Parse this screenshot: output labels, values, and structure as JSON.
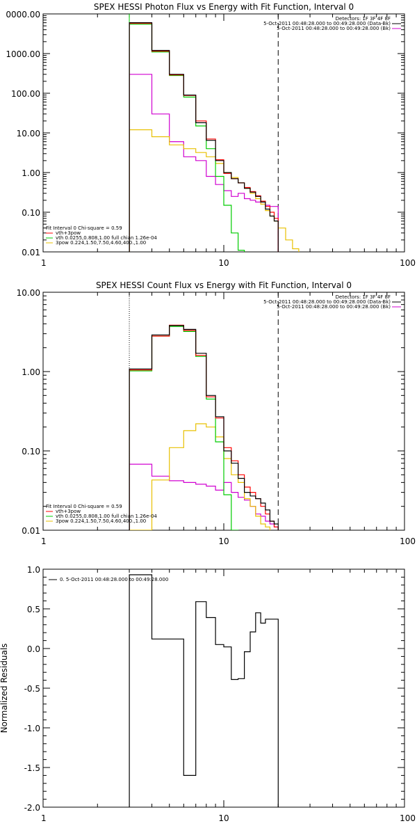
{
  "chart_data": [
    {
      "type": "line",
      "title": "SPEX HESSI Photon Flux vs Energy with Fit Function, Interval 0",
      "xlabel": "",
      "ylabel": "",
      "xscale": "log",
      "yscale": "log",
      "xlim": [
        1,
        100
      ],
      "ylim": [
        0.01,
        10000
      ],
      "xticks": [
        "1",
        "10",
        "100"
      ],
      "yticks": [
        "0000.00",
        "1000.00",
        "100.00",
        "10.00",
        "1.00",
        "0.10",
        "0.01"
      ],
      "ytick_values": [
        10000,
        1000,
        100,
        10,
        1,
        0.1,
        0.01
      ],
      "vlines": [
        {
          "x": 3,
          "style": "solid-green"
        },
        {
          "x": 20,
          "style": "dashed"
        }
      ],
      "header_text": [
        "Detectors: 1F 3F 4F 8F",
        "5-Oct-2011 00:48:28.000 to 00:49:28.000 (Data-Bk)",
        "5-Oct-2011 00:48:28.000 to 00:49:28.000 (Bk)"
      ],
      "fit_text": [
        "Fit Interval 0   Chi-square = 0.59",
        "vth+3pow",
        "vth 0.0255,0.808,1.00  full chian 1.26e-04",
        "3pow 0.224,1.50,7.50,4.60,400.,1.00"
      ],
      "edges": [
        3,
        4,
        5,
        6,
        7,
        8,
        9,
        10,
        11,
        12,
        13,
        14,
        15,
        16,
        17,
        18,
        19,
        20,
        22,
        24,
        26,
        28
      ],
      "series": [
        {
          "name": "Data-Bk",
          "color": "#000000",
          "values": [
            6000,
            1200,
            300,
            90,
            18,
            6.5,
            2.0,
            1.0,
            0.7,
            0.55,
            0.4,
            0.32,
            0.25,
            0.18,
            0.12,
            0.08,
            0.06,
            null,
            null,
            null,
            null
          ]
        },
        {
          "name": "vth+3pow",
          "color": "#ff0000",
          "values": [
            5800,
            1150,
            290,
            88,
            20,
            7.0,
            2.1,
            0.95,
            0.7,
            0.55,
            0.42,
            0.33,
            0.26,
            0.19,
            0.14,
            0.1,
            0.07,
            null,
            null,
            null,
            null
          ]
        },
        {
          "name": "vth",
          "color": "#00cc00",
          "values": [
            5500,
            1100,
            280,
            80,
            15,
            4.0,
            0.8,
            0.15,
            0.03,
            0.011,
            null,
            null,
            null,
            null,
            null,
            null,
            null,
            null,
            null,
            null,
            null
          ]
        },
        {
          "name": "3pow",
          "color": "#e8c000",
          "values": [
            12,
            8.0,
            5.0,
            4.0,
            3.2,
            2.5,
            1.7,
            1.0,
            0.75,
            0.55,
            0.4,
            0.3,
            0.22,
            0.16,
            0.11,
            0.08,
            0.06,
            0.04,
            0.02,
            0.012,
            null
          ]
        },
        {
          "name": "Bk",
          "color": "#d000d0",
          "values": [
            300,
            30,
            6.0,
            2.5,
            2.0,
            0.8,
            0.5,
            0.35,
            0.25,
            0.3,
            0.22,
            0.2,
            0.18,
            0.16,
            0.15,
            0.14,
            0.14,
            null,
            null,
            null,
            null
          ]
        }
      ]
    },
    {
      "type": "line",
      "title": "SPEX HESSI Count Flux vs Energy with Fit Function, Interval 0",
      "xlabel": "",
      "ylabel": "",
      "xscale": "log",
      "yscale": "log",
      "xlim": [
        1,
        100
      ],
      "ylim": [
        0.01,
        10
      ],
      "xticks": [
        "1",
        "10",
        "100"
      ],
      "yticks": [
        "10.00",
        "1.00",
        "0.10",
        "0.01"
      ],
      "ytick_values": [
        10,
        1,
        0.1,
        0.01
      ],
      "vlines": [
        {
          "x": 3,
          "style": "dotted"
        },
        {
          "x": 20,
          "style": "dashed"
        }
      ],
      "header_text": [
        "Detectors: 1F 3F 4F 8F",
        "5-Oct-2011 00:48:28.000 to 00:49:28.000 (Data-Bk)",
        "5-Oct-2011 00:48:28.000 to 00:49:28.000 (Bk)"
      ],
      "fit_text": [
        "Fit Interval 0   Chi-square = 0.59",
        "vth+3pow",
        "vth 0.0255,0.808,1.00  full chian 1.26e-04",
        "3pow 0.224,1.50,7.50,4.60,400.,1.00"
      ],
      "edges": [
        3,
        4,
        5,
        6,
        7,
        8,
        9,
        10,
        11,
        12,
        13,
        14,
        15,
        16,
        17,
        18,
        19,
        20
      ],
      "series": [
        {
          "name": "Data-Bk",
          "color": "#000000",
          "values": [
            1.08,
            2.9,
            3.8,
            3.4,
            1.7,
            0.5,
            0.27,
            0.1,
            0.07,
            0.045,
            0.03,
            0.027,
            0.025,
            0.022,
            0.018,
            0.013,
            0.012
          ]
        },
        {
          "name": "vth+3pow",
          "color": "#ff0000",
          "values": [
            1.05,
            2.8,
            3.85,
            3.3,
            1.6,
            0.48,
            0.26,
            0.11,
            0.075,
            0.05,
            0.035,
            0.03,
            0.025,
            0.02,
            0.016,
            0.013,
            0.011
          ]
        },
        {
          "name": "vth",
          "color": "#00cc00",
          "values": [
            1.02,
            2.8,
            3.7,
            3.2,
            1.55,
            0.45,
            0.13,
            0.028,
            0.01,
            null,
            null,
            null,
            null,
            null,
            null,
            null,
            null
          ]
        },
        {
          "name": "3pow",
          "color": "#e8c000",
          "values": [
            0.01,
            0.043,
            0.11,
            0.18,
            0.22,
            0.2,
            0.15,
            0.08,
            0.05,
            0.04,
            0.025,
            0.02,
            0.015,
            0.012,
            0.011,
            null,
            null
          ]
        },
        {
          "name": "Bk",
          "color": "#d000d0",
          "values": [
            0.068,
            0.048,
            0.042,
            0.04,
            0.038,
            0.036,
            0.032,
            0.04,
            0.03,
            0.026,
            0.024,
            0.02,
            0.016,
            0.015,
            0.013,
            0.012,
            0.011
          ]
        }
      ]
    },
    {
      "type": "line",
      "title": "",
      "xlabel": "",
      "ylabel": "Normalized Residuals",
      "xscale": "log",
      "yscale": "linear",
      "xlim": [
        1,
        100
      ],
      "ylim": [
        -2.0,
        1.0
      ],
      "xticks": [
        "1",
        "10",
        "100"
      ],
      "yticks": [
        "1.0",
        "0.5",
        "0.0",
        "-0.5",
        "-1.0",
        "-1.5",
        "-2.0"
      ],
      "ytick_values": [
        1.0,
        0.5,
        0.0,
        -0.5,
        -1.0,
        -1.5,
        -2.0
      ],
      "legend": "0.  5-Oct-2011 00:48:28.000 to 00:49:28.000",
      "edges": [
        3,
        4,
        5,
        6,
        7,
        8,
        9,
        10,
        11,
        12,
        13,
        14,
        15,
        16,
        17,
        18,
        19,
        20
      ],
      "series": [
        {
          "name": "0.  5-Oct-2011 00:48:28.000 to 00:49:28.000",
          "color": "#000000",
          "values": [
            0.93,
            0.12,
            0.12,
            -1.6,
            0.59,
            0.39,
            0.05,
            0.02,
            -0.39,
            -0.38,
            -0.04,
            0.21,
            0.45,
            0.32,
            0.37,
            0.37,
            0.37
          ]
        }
      ]
    }
  ]
}
